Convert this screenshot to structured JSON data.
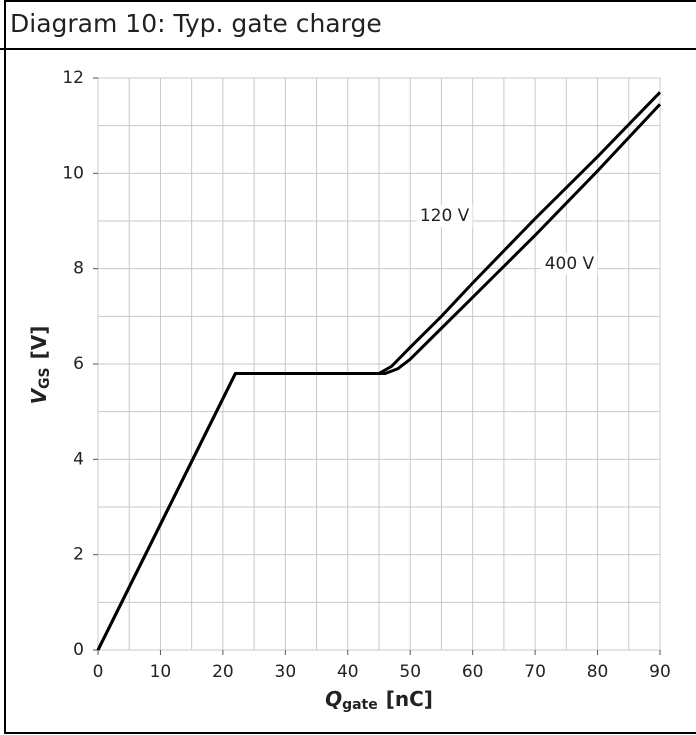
{
  "chart_data": {
    "type": "line",
    "title": "Diagram 10: Typ. gate charge",
    "xlabel": {
      "main": "Q",
      "sub": "gate",
      "unit": "[nC]"
    },
    "ylabel": {
      "main": "V",
      "sub": "GS",
      "unit": "[V]"
    },
    "xlim": [
      0,
      90
    ],
    "ylim": [
      0,
      12
    ],
    "xticks": [
      0,
      10,
      20,
      30,
      40,
      50,
      60,
      70,
      80,
      90
    ],
    "yticks": [
      0,
      2,
      4,
      6,
      8,
      10,
      12
    ],
    "xgrid": [
      0,
      5,
      10,
      15,
      20,
      25,
      30,
      35,
      40,
      45,
      50,
      55,
      60,
      65,
      70,
      75,
      80,
      85,
      90
    ],
    "ygrid": [
      0,
      1,
      2,
      3,
      4,
      5,
      6,
      7,
      8,
      9,
      10,
      11,
      12
    ],
    "grid": true,
    "series": [
      {
        "name": "120 V",
        "color": "#000000",
        "x": [
          0,
          22,
          45,
          47,
          50,
          55,
          60,
          70,
          80,
          90
        ],
        "values": [
          0,
          5.8,
          5.8,
          5.95,
          6.35,
          7.0,
          7.7,
          9.05,
          10.35,
          11.7
        ]
      },
      {
        "name": "400 V",
        "color": "#000000",
        "x": [
          0,
          22,
          46,
          48,
          50,
          55,
          60,
          70,
          80,
          90
        ],
        "values": [
          0,
          5.8,
          5.8,
          5.9,
          6.1,
          6.75,
          7.4,
          8.7,
          10.05,
          11.45
        ]
      }
    ]
  }
}
